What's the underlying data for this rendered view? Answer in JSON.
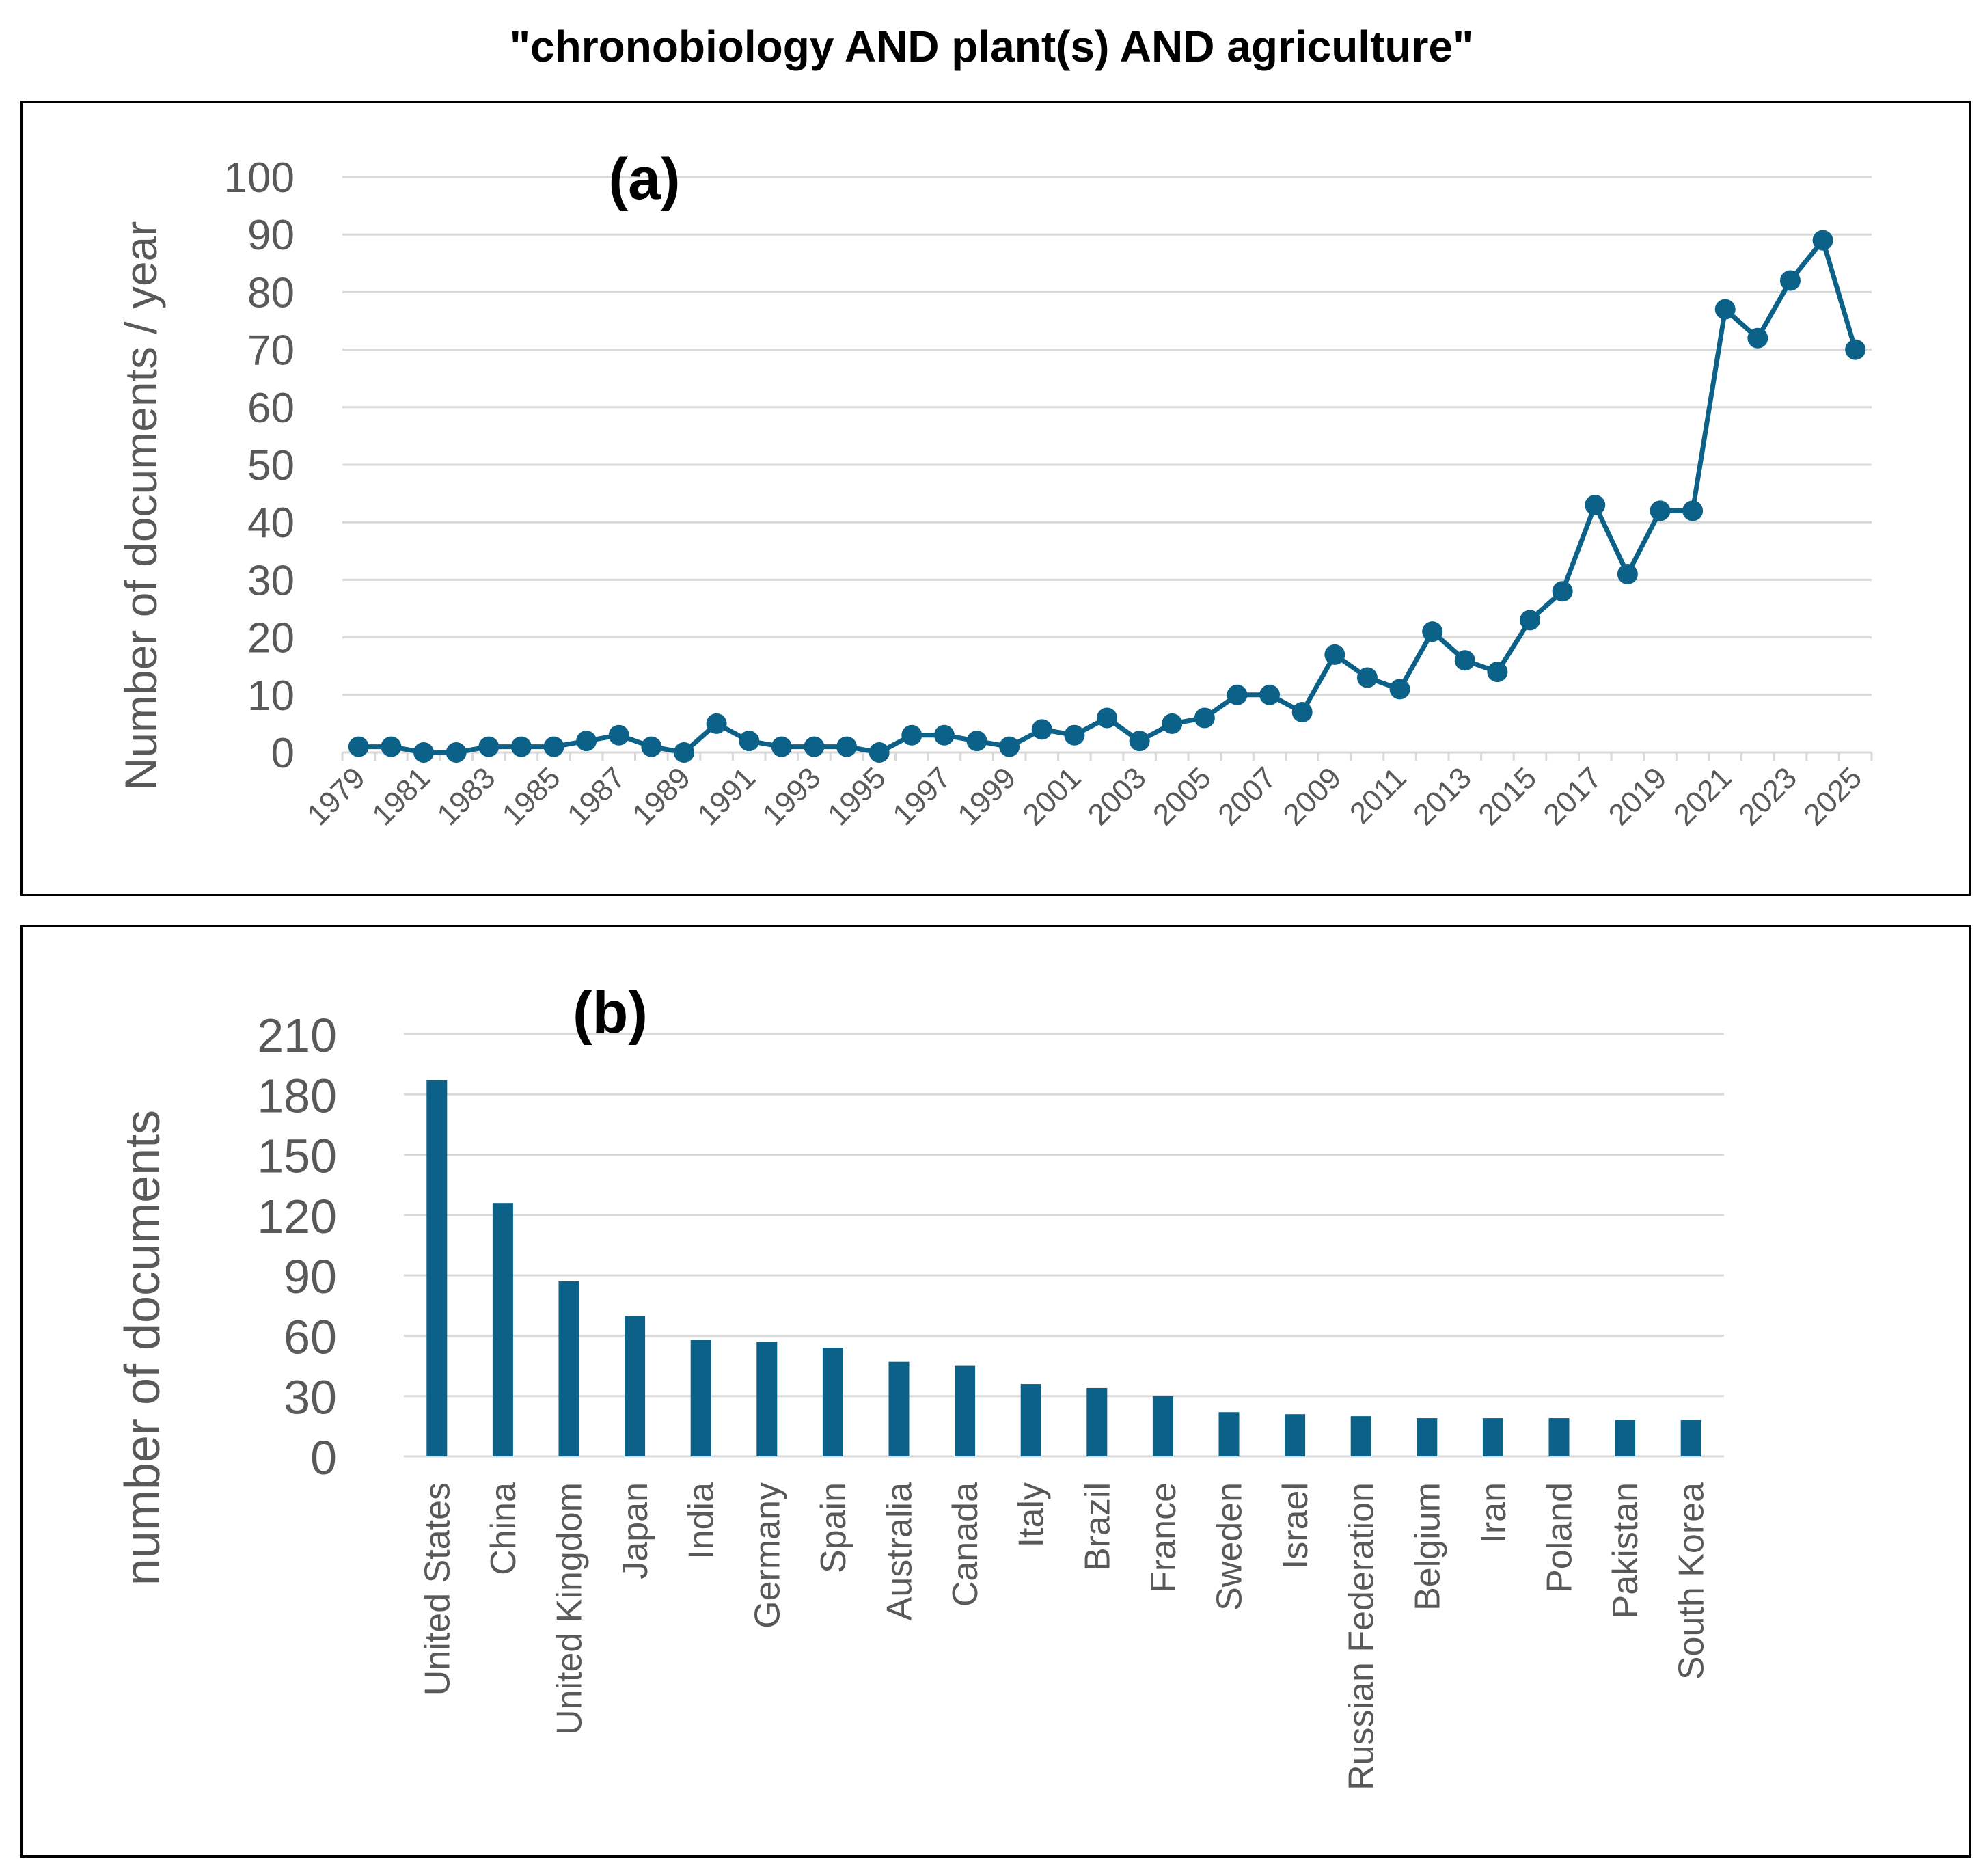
{
  "title": "\"chronobiology AND plant(s) AND agriculture\"",
  "colors": {
    "series": "#0B6187",
    "grid": "#D9D9D9",
    "tick_text": "#595959"
  },
  "chart_data": [
    {
      "panel_label": "(a)",
      "type": "line",
      "title": "",
      "xlabel": "",
      "ylabel": "Number of documents / year",
      "ylim": [
        0,
        100
      ],
      "yticks": [
        "0",
        "10",
        "20",
        "30",
        "40",
        "50",
        "60",
        "70",
        "80",
        "90",
        "100"
      ],
      "x": [
        1979,
        1980,
        1981,
        1982,
        1983,
        1984,
        1985,
        1986,
        1987,
        1988,
        1989,
        1990,
        1991,
        1992,
        1993,
        1994,
        1995,
        1996,
        1997,
        1998,
        1999,
        2000,
        2001,
        2002,
        2003,
        2004,
        2005,
        2006,
        2007,
        2008,
        2009,
        2010,
        2011,
        2012,
        2013,
        2014,
        2015,
        2016,
        2017,
        2018,
        2019,
        2020,
        2021,
        2022,
        2023,
        2024,
        2025
      ],
      "values": [
        1,
        1,
        0,
        0,
        1,
        1,
        1,
        2,
        3,
        1,
        0,
        5,
        2,
        1,
        1,
        1,
        0,
        3,
        3,
        2,
        1,
        4,
        3,
        6,
        2,
        5,
        6,
        10,
        10,
        7,
        17,
        13,
        11,
        21,
        16,
        14,
        23,
        28,
        43,
        31,
        42,
        42,
        77,
        72,
        82,
        89,
        70
      ],
      "xtick_labels": [
        "1979",
        "1981",
        "1983",
        "1985",
        "1987",
        "1989",
        "1991",
        "1993",
        "1995",
        "1997",
        "1999",
        "2001",
        "2003",
        "2005",
        "2007",
        "2009",
        "2011",
        "2013",
        "2015",
        "2017",
        "2019",
        "2021",
        "2023",
        "2025"
      ],
      "grid": true,
      "legend": "none"
    },
    {
      "panel_label": "(b)",
      "type": "bar",
      "title": "",
      "xlabel": "",
      "ylabel": "number of documents",
      "ylim": [
        0,
        210
      ],
      "yticks": [
        "0",
        "30",
        "60",
        "90",
        "120",
        "150",
        "180",
        "210"
      ],
      "categories": [
        "United States",
        "China",
        "United Kingdom",
        "Japan",
        "India",
        "Germany",
        "Spain",
        "Australia",
        "Canada",
        "Italy",
        "Brazil",
        "France",
        "Sweden",
        "Israel",
        "Russian Federation",
        "Belgium",
        "Iran",
        "Poland",
        "Pakistan",
        "South Korea"
      ],
      "values": [
        187,
        126,
        87,
        70,
        58,
        57,
        54,
        47,
        45,
        36,
        34,
        30,
        22,
        21,
        20,
        19,
        19,
        19,
        18,
        18
      ],
      "grid": true,
      "legend": "none"
    }
  ]
}
